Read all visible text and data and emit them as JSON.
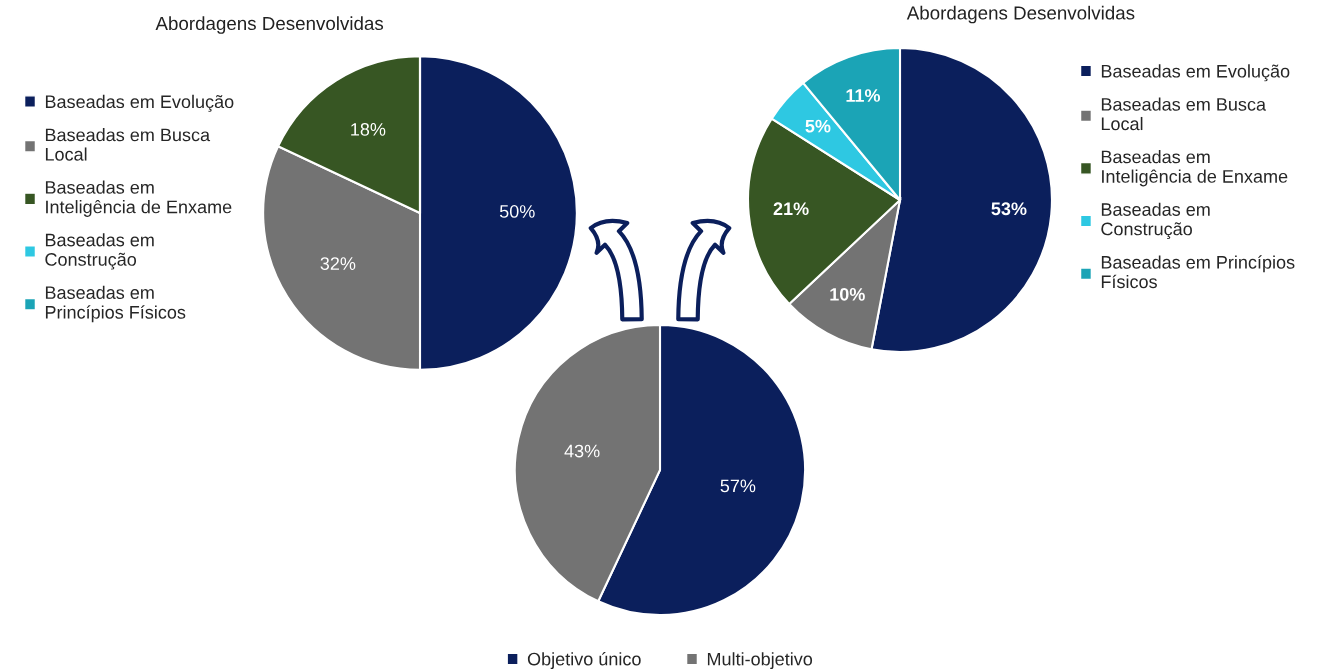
{
  "chart_data": [
    {
      "type": "pie",
      "title": "Abordagens Desenvolvidas",
      "categories": [
        "Baseadas em Evolução",
        "Baseadas em Busca\nLocal",
        "Baseadas em\nInteligência de Enxame",
        "Baseadas em\nConstrução",
        "Baseadas em\nPrincípios Físicos"
      ],
      "values": [
        50,
        32,
        18,
        0,
        0
      ],
      "value_labels": [
        "50%",
        "32%",
        "18%",
        null,
        null
      ],
      "colors": [
        "#0b1f5c",
        "#737373",
        "#375623",
        "#2ec8e2",
        "#1ba4b6"
      ],
      "legend": "left"
    },
    {
      "type": "pie",
      "title": "Abordagens Desenvolvidas",
      "categories": [
        "Baseadas em Evolução",
        "Baseadas em Busca\nLocal",
        "Baseadas em\nInteligência de Enxame",
        "Baseadas em\nConstrução",
        "Baseadas em Princípios\nFísicos"
      ],
      "values": [
        53,
        10,
        21,
        5,
        11
      ],
      "value_labels": [
        "53%",
        "10%",
        "21%",
        "5%",
        "11%"
      ],
      "colors": [
        "#0b1f5c",
        "#737373",
        "#375623",
        "#2ec8e2",
        "#1ba4b6"
      ],
      "legend": "right"
    },
    {
      "type": "pie",
      "categories": [
        "Objetivo único",
        "Multi-objetivo"
      ],
      "values": [
        57,
        43
      ],
      "value_labels": [
        "57%",
        "43%"
      ],
      "colors": [
        "#0b1f5c",
        "#737373"
      ],
      "legend": "bottom"
    }
  ]
}
